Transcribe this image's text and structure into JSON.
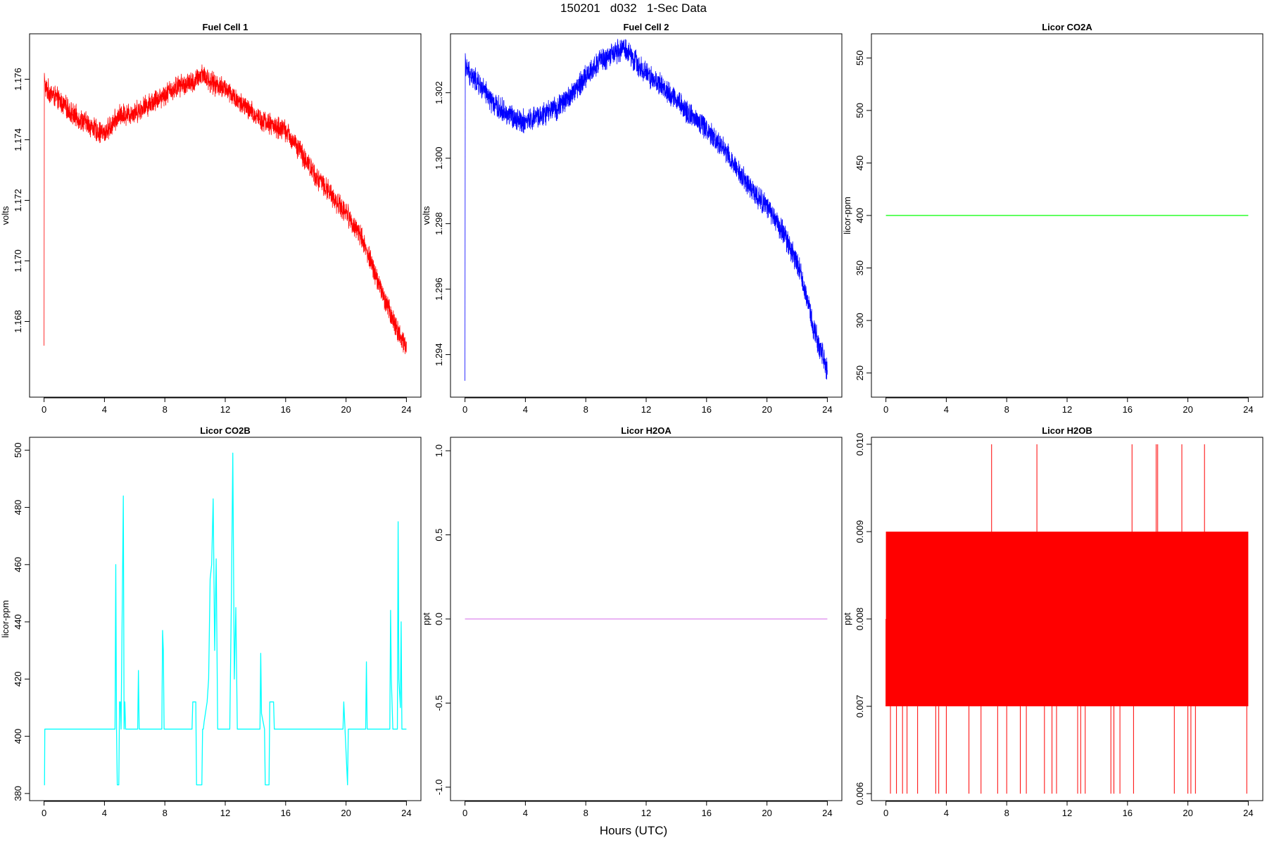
{
  "title": "150201   d032   1-Sec Data",
  "xlabel": "Hours (UTC)",
  "chart_data": [
    {
      "type": "line",
      "title": "Fuel Cell 1",
      "ylabel": "volts",
      "color": "#ff0000",
      "xlim": [
        0,
        24
      ],
      "xticks": [
        0,
        4,
        8,
        12,
        16,
        20,
        24
      ],
      "ylim": [
        1.1655,
        1.1775
      ],
      "yticks": [
        1.168,
        1.17,
        1.172,
        1.174,
        1.176
      ],
      "ytick_labels": [
        "1.168",
        "1.170",
        "1.172",
        "1.174",
        "1.176"
      ],
      "noise": 0.00035,
      "series": [
        {
          "x": [
            0,
            0.02,
            0.05,
            0.1,
            1,
            2,
            3,
            3.5,
            4,
            4.5,
            5,
            6,
            7,
            8,
            9,
            10,
            10.5,
            11,
            12,
            13,
            14,
            15,
            16,
            17,
            18,
            19,
            20,
            21,
            22,
            22.5,
            23,
            23.5,
            24
          ],
          "y": [
            1.1672,
            1.1762,
            1.1758,
            1.1757,
            1.1753,
            1.1748,
            1.1745,
            1.1743,
            1.1742,
            1.1745,
            1.1748,
            1.1749,
            1.1752,
            1.1755,
            1.1758,
            1.1759,
            1.1762,
            1.1759,
            1.1757,
            1.1752,
            1.1748,
            1.1745,
            1.1743,
            1.1736,
            1.1728,
            1.1722,
            1.1716,
            1.1708,
            1.1695,
            1.1688,
            1.1682,
            1.1676,
            1.1672
          ]
        }
      ]
    },
    {
      "type": "line",
      "title": "Fuel Cell 2",
      "ylabel": "volts",
      "color": "#0000ff",
      "xlim": [
        0,
        24
      ],
      "xticks": [
        0,
        4,
        8,
        12,
        16,
        20,
        24
      ],
      "ylim": [
        1.2927,
        1.3038
      ],
      "yticks": [
        1.294,
        1.296,
        1.298,
        1.3,
        1.302
      ],
      "ytick_labels": [
        "1.294",
        "1.296",
        "1.298",
        "1.300",
        "1.302"
      ],
      "noise": 0.00035,
      "series": [
        {
          "x": [
            0,
            0.02,
            0.05,
            0.1,
            1,
            2,
            3,
            4,
            5,
            6,
            7,
            8,
            9,
            10,
            10.5,
            11,
            12,
            13,
            14,
            15,
            16,
            17,
            18,
            19,
            20,
            21,
            22,
            22.5,
            23,
            23.5,
            24
          ],
          "y": [
            1.2932,
            1.3032,
            1.3028,
            1.3027,
            1.3022,
            1.3016,
            1.3013,
            1.3011,
            1.3013,
            1.3015,
            1.3019,
            1.3025,
            1.303,
            1.3032,
            1.3034,
            1.3031,
            1.3026,
            1.3022,
            1.3018,
            1.3013,
            1.3009,
            1.3004,
            1.2997,
            1.299,
            1.2985,
            1.2978,
            1.2968,
            1.296,
            1.295,
            1.2942,
            1.2935
          ]
        }
      ]
    },
    {
      "type": "line",
      "title": "Licor CO2A",
      "ylabel": "licor-ppm",
      "color": "#00ff00",
      "xlim": [
        0,
        24
      ],
      "xticks": [
        0,
        4,
        8,
        12,
        16,
        20,
        24
      ],
      "ylim": [
        227,
        573
      ],
      "yticks": [
        250,
        300,
        350,
        400,
        450,
        500,
        550
      ],
      "ytick_labels": [
        "250",
        "300",
        "350",
        "400",
        "450",
        "500",
        "550"
      ],
      "noise": 0,
      "series": [
        {
          "x": [
            0,
            24
          ],
          "y": [
            400,
            400
          ]
        }
      ]
    },
    {
      "type": "line",
      "title": "Licor CO2B",
      "ylabel": "licor-ppm",
      "color": "#00ffff",
      "xlim": [
        0,
        24
      ],
      "xticks": [
        0,
        4,
        8,
        12,
        16,
        20,
        24
      ],
      "ylim": [
        377.5,
        504.5
      ],
      "yticks": [
        380,
        400,
        420,
        440,
        460,
        480,
        500
      ],
      "ytick_labels": [
        "380",
        "400",
        "420",
        "440",
        "460",
        "480",
        "500"
      ],
      "noise": 0,
      "series": [
        {
          "x": [
            0,
            0.03,
            0.05,
            0.08,
            4.7,
            4.75,
            4.8,
            4.85,
            4.95,
            5.0,
            5.05,
            5.1,
            5.25,
            5.3,
            5.35,
            5.4,
            6.2,
            6.25,
            6.3,
            7.8,
            7.85,
            7.9,
            7.95,
            9.8,
            9.85,
            10.05,
            10.1,
            10.45,
            10.5,
            10.55,
            10.6,
            10.8,
            10.9,
            11.0,
            11.1,
            11.2,
            11.3,
            11.4,
            11.5,
            12.3,
            12.4,
            12.5,
            12.6,
            12.7,
            12.8,
            14.3,
            14.35,
            14.4,
            14.6,
            14.65,
            14.9,
            14.95,
            15.2,
            15.25,
            19.8,
            19.85,
            20.1,
            20.15,
            21.3,
            21.35,
            21.4,
            22.9,
            22.95,
            23.0,
            23.1,
            23.4,
            23.45,
            23.5,
            23.6,
            23.65,
            23.7,
            23.8,
            24
          ],
          "y": [
            383,
            383,
            402.5,
            402.5,
            402.5,
            460,
            402,
            383,
            383,
            412,
            412,
            402.5,
            484,
            402.5,
            412,
            402.5,
            402.5,
            423,
            402.5,
            402.5,
            437,
            430,
            402.5,
            402.5,
            412,
            412,
            383,
            383,
            402.5,
            402.5,
            405,
            412,
            420,
            455,
            460,
            483,
            430,
            462,
            402.5,
            402.5,
            445,
            499,
            420,
            445,
            402.5,
            402.5,
            429,
            408,
            402.5,
            383,
            383,
            412,
            412,
            402.5,
            402.5,
            412,
            383,
            402.5,
            402.5,
            426,
            402.5,
            402.5,
            444,
            420,
            402.5,
            402.5,
            475,
            420,
            410,
            440,
            402.5,
            402.5,
            402.5
          ]
        }
      ]
    },
    {
      "type": "line",
      "title": "Licor H2OA",
      "ylabel": "ppt",
      "color": "#dd88ee",
      "xlim": [
        0,
        24
      ],
      "xticks": [
        0,
        4,
        8,
        12,
        16,
        20,
        24
      ],
      "ylim": [
        -1.08,
        1.08
      ],
      "yticks": [
        -1.0,
        -0.5,
        0.0,
        0.5,
        1.0
      ],
      "ytick_labels": [
        "-1.0",
        "-0.5",
        "0.0",
        "0.5",
        "1.0"
      ],
      "noise": 0,
      "series": [
        {
          "x": [
            0,
            24
          ],
          "y": [
            0,
            0
          ]
        }
      ]
    },
    {
      "type": "area",
      "title": "Licor H2OB",
      "ylabel": "ppt",
      "color": "#ff0000",
      "xlim": [
        0,
        24
      ],
      "xticks": [
        0,
        4,
        8,
        12,
        16,
        20,
        24
      ],
      "ylim": [
        0.00592,
        0.01008
      ],
      "yticks": [
        0.006,
        0.007,
        0.008,
        0.009,
        0.01
      ],
      "ytick_labels": [
        "0.006",
        "0.007",
        "0.008",
        "0.009",
        "0.010"
      ],
      "noise": 0,
      "band": {
        "low": 0.007,
        "high": 0.009
      },
      "spikes_high": [
        7.0,
        10.0,
        16.3,
        17.9,
        18.0,
        19.6,
        21.1
      ],
      "spikes_low": [
        0.3,
        0.7,
        1.1,
        1.4,
        2.1,
        3.3,
        3.5,
        4.0,
        5.5,
        6.3,
        7.4,
        8.0,
        8.9,
        9.3,
        10.5,
        11.0,
        11.3,
        12.7,
        12.9,
        13.2,
        14.9,
        15.1,
        15.5,
        16.4,
        19.1,
        20.0,
        20.2,
        20.5,
        23.9
      ]
    }
  ]
}
